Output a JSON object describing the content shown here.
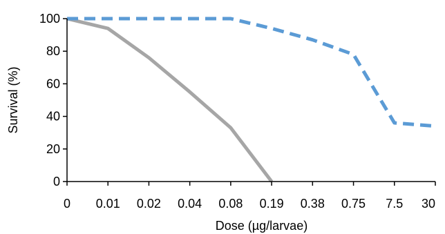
{
  "chart_data": {
    "type": "line",
    "title": "",
    "xlabel": "Dose (µg/larvae)",
    "ylabel": "Survival (%)",
    "categories": [
      "0",
      "0.01",
      "0.02",
      "0.04",
      "0.08",
      "0.19",
      "0.38",
      "0.75",
      "7.5",
      "30"
    ],
    "ylim": [
      0,
      100
    ],
    "yticks": [
      0,
      20,
      40,
      60,
      80,
      100
    ],
    "grid": false,
    "legend": "none",
    "series": [
      {
        "values": [
          100,
          94,
          76,
          55,
          33,
          0,
          null,
          null,
          null,
          null
        ],
        "color": "#a6a6a6",
        "style": "solid"
      },
      {
        "values": [
          100,
          100,
          100,
          100,
          100,
          94,
          87,
          78,
          36,
          34
        ],
        "color": "#5b9bd5",
        "style": "dashed"
      }
    ]
  }
}
